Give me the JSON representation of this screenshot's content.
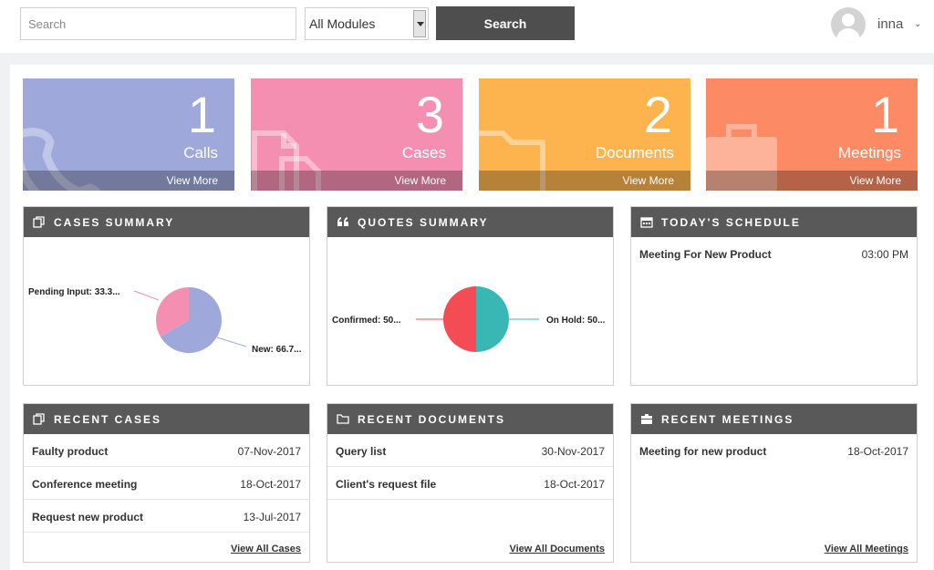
{
  "header": {
    "search_placeholder": "Search",
    "module_select": "All Modules",
    "search_button": "Search",
    "username": "inna"
  },
  "tiles": [
    {
      "count": "1",
      "label": "Calls",
      "link": "View More",
      "color": "#9ea8da",
      "icon": "phone-icon"
    },
    {
      "count": "3",
      "label": "Cases",
      "link": "View More",
      "color": "#f48fb1",
      "icon": "documents-icon"
    },
    {
      "count": "2",
      "label": "Documents",
      "link": "View More",
      "color": "#fdb44f",
      "icon": "folder-icon"
    },
    {
      "count": "1",
      "label": "Meetings",
      "link": "View More",
      "color": "#fb8a65",
      "icon": "briefcase-icon"
    }
  ],
  "cases_summary": {
    "title": "CASES SUMMARY",
    "slices": [
      {
        "label": "Pending Input: 33.3...",
        "value": 33.3,
        "color": "#f48fb1"
      },
      {
        "label": "New: 66.7...",
        "value": 66.7,
        "color": "#9ea8da"
      }
    ]
  },
  "quotes_summary": {
    "title": "QUOTES SUMMARY",
    "slices": [
      {
        "label": "Confirmed: 50...",
        "value": 50,
        "color": "#f44c55"
      },
      {
        "label": "On Hold: 50...",
        "value": 50,
        "color": "#38b7b4"
      }
    ]
  },
  "schedule": {
    "title": "TODAY'S SCHEDULE",
    "items": [
      {
        "title": "Meeting For New Product",
        "time": "03:00 PM"
      }
    ]
  },
  "recent_cases": {
    "title": "RECENT CASES",
    "items": [
      {
        "title": "Faulty product",
        "date": "07-Nov-2017"
      },
      {
        "title": "Conference meeting",
        "date": "18-Oct-2017"
      },
      {
        "title": "Request new product",
        "date": "13-Jul-2017"
      }
    ],
    "view_all": "View All Cases"
  },
  "recent_documents": {
    "title": "RECENT DOCUMENTS",
    "items": [
      {
        "title": "Query list",
        "date": "30-Nov-2017"
      },
      {
        "title": "Client's request file",
        "date": "18-Oct-2017"
      }
    ],
    "view_all": "View All Documents"
  },
  "recent_meetings": {
    "title": "RECENT MEETINGS",
    "items": [
      {
        "title": "Meeting for new product",
        "date": "18-Oct-2017"
      }
    ],
    "view_all": "View All Meetings"
  }
}
